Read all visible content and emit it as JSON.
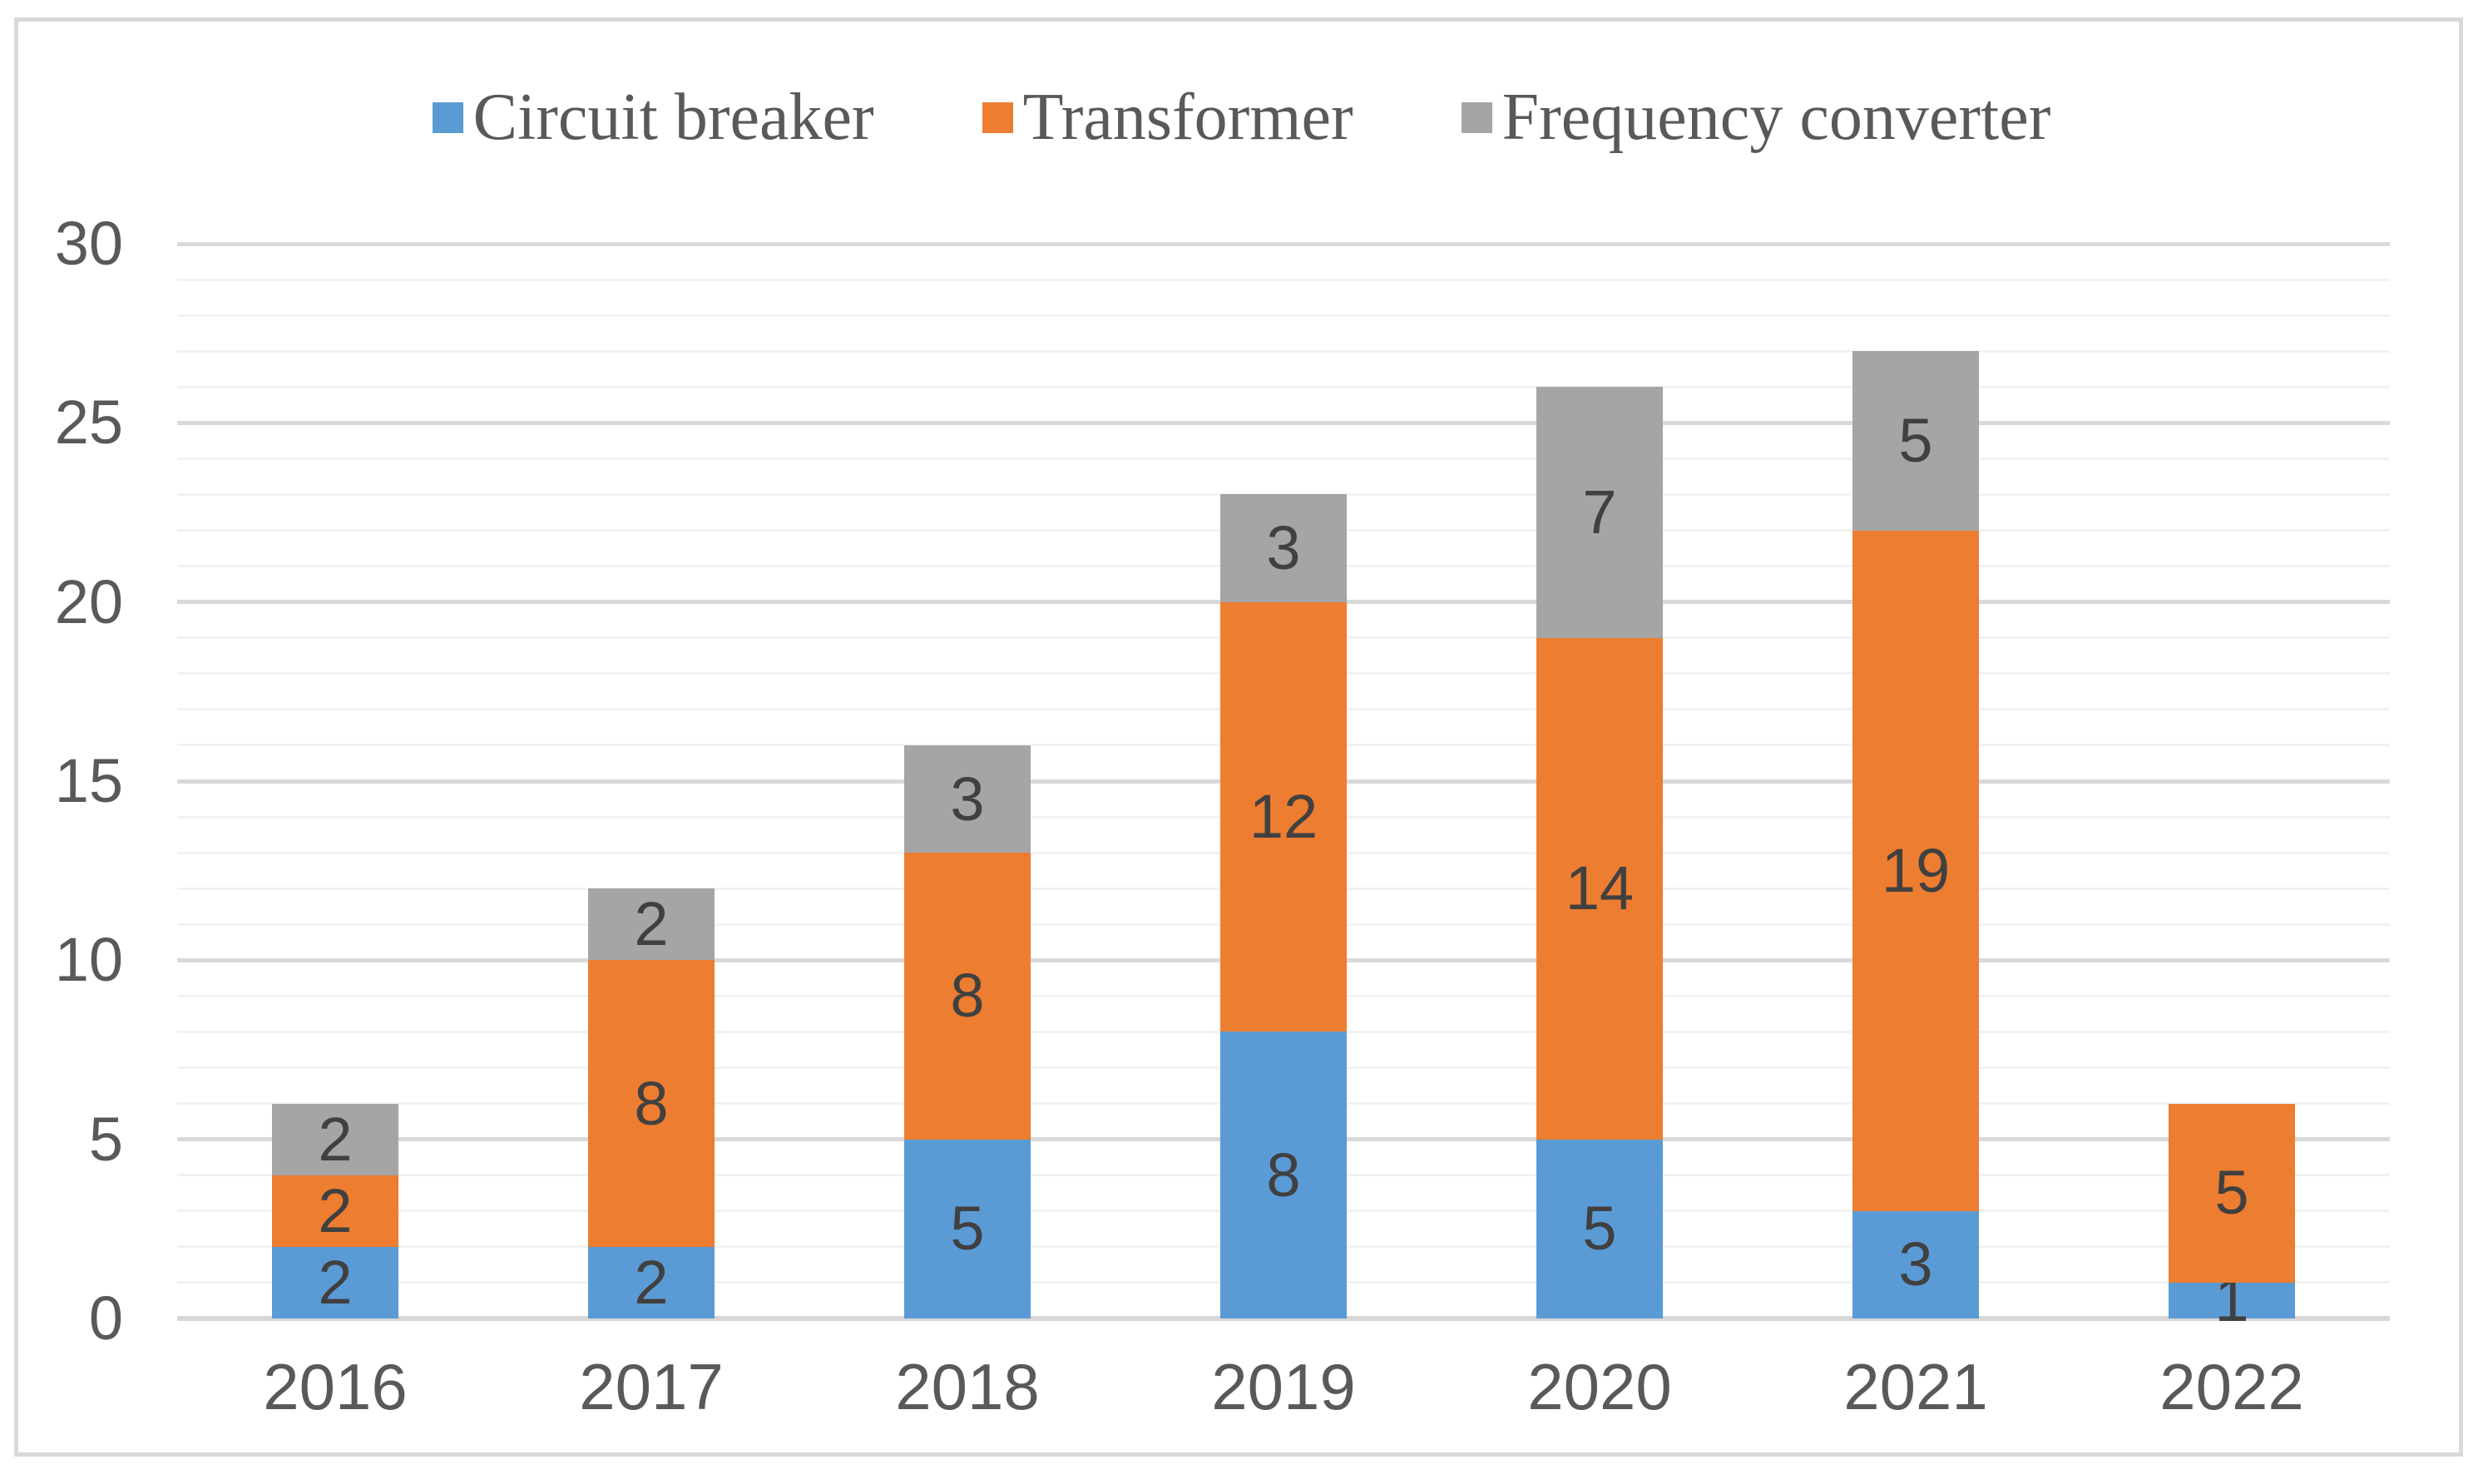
{
  "figure": {
    "background": "#FFFFFF",
    "border_color": "#D9D9D9"
  },
  "chart_data": {
    "type": "bar",
    "stacked": true,
    "title": "",
    "xlabel": "",
    "ylabel": "",
    "categories": [
      "2016",
      "2017",
      "2018",
      "2019",
      "2020",
      "2021",
      "2022"
    ],
    "series": [
      {
        "name": "Circuit breaker",
        "color": "#5B9BD5",
        "values": [
          2,
          2,
          5,
          8,
          5,
          3,
          1
        ]
      },
      {
        "name": "Transformer",
        "color": "#ED7D31",
        "values": [
          2,
          8,
          8,
          12,
          14,
          19,
          5
        ]
      },
      {
        "name": "Frequency converter",
        "color": "#A5A5A5",
        "values": [
          2,
          2,
          3,
          3,
          7,
          5,
          0
        ]
      }
    ],
    "totals": [
      6,
      12,
      16,
      23,
      26,
      27,
      6
    ],
    "ylim": [
      0,
      30
    ],
    "y_ticks": [
      0,
      5,
      10,
      15,
      20,
      25,
      30
    ],
    "grid": {
      "minor_step": 1,
      "major_step": 5,
      "minor_color": "#F2F2F2",
      "major_color": "#D9D9D9",
      "axis_line_color": "#D7D7D7"
    },
    "legend_position": "top",
    "data_labels_shown": true,
    "data_label_color": "#404040",
    "axis_text_color": "#595959"
  }
}
